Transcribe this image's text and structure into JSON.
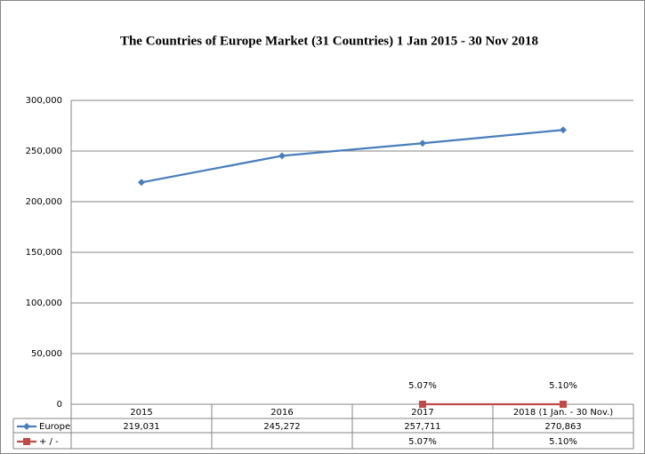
{
  "chart_data": {
    "type": "line",
    "title": "The Countries of Europe Market   (31 Countries)  1 Jan 2015 - 30 Nov 2018",
    "categories": [
      "2015",
      "2016",
      "2017",
      "2018 (1 Jan. - 30 Nov.)"
    ],
    "series": [
      {
        "name": "Europe",
        "color": "#4a7ebb",
        "values": [
          219031,
          245272,
          257711,
          270863
        ],
        "value_labels": [
          "219,031",
          "245,272",
          "257,711",
          "270,863"
        ]
      },
      {
        "name": "+ / -",
        "color": "#be4b48",
        "values": [
          null,
          null,
          5.07,
          5.1
        ],
        "value_labels": [
          null,
          null,
          "5.07%",
          "5.10%"
        ]
      }
    ],
    "ylim": [
      0,
      300000
    ],
    "yticks": [
      0,
      {
        "value": 50000,
        "label": "50,000"
      },
      {
        "value": 100000,
        "label": "100,000"
      },
      {
        "value": 150000,
        "label": "150,000"
      },
      {
        "value": 200000,
        "label": "200,000"
      },
      {
        "value": 250000,
        "label": "250,000"
      },
      {
        "value": 300000,
        "label": "300,000"
      }
    ],
    "grid": true
  }
}
